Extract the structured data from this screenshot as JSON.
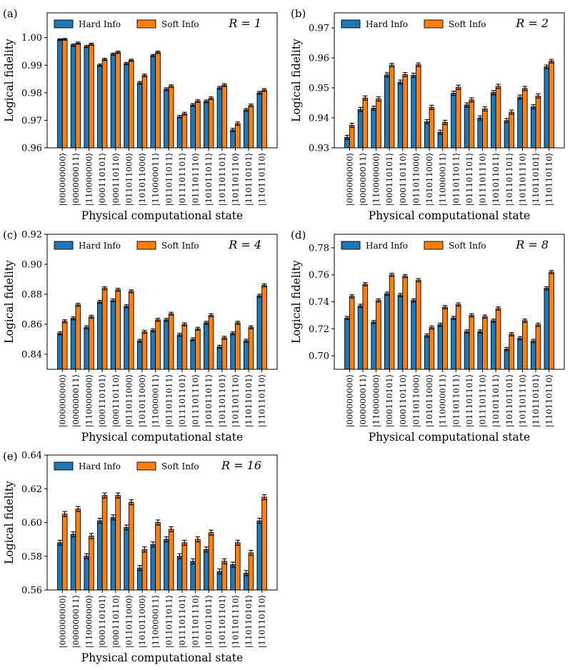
{
  "colors": {
    "hard": "#1f77b4",
    "soft": "#ff7f0e",
    "edge": "#000000"
  },
  "chart_data": [
    {
      "type": "bar",
      "panel": "(a)",
      "annotation": "R = 1",
      "xlabel": "Physical computational state",
      "ylabel": "Logical fidelity",
      "ylim": [
        0.96,
        1.009
      ],
      "yticks": [
        "0.96",
        "0.97",
        "0.98",
        "0.99",
        "1.00"
      ],
      "legend": [
        "Hard Info",
        "Soft Info"
      ],
      "categories": [
        "|000000000⟩",
        "|000000011⟩",
        "|110000000⟩",
        "|000110101⟩",
        "|000110110⟩",
        "|011011000⟩",
        "|101011000⟩",
        "|110000011⟩",
        "|011011011⟩",
        "|011101101⟩",
        "|011101110⟩",
        "|101011011⟩",
        "|101101101⟩",
        "|101101110⟩",
        "|110110101⟩",
        "|110110110⟩"
      ],
      "series": [
        {
          "name": "Hard Info",
          "values": [
            0.9993,
            0.9973,
            0.9968,
            0.99,
            0.994,
            0.9906,
            0.9836,
            0.9935,
            0.9813,
            0.9713,
            0.9756,
            0.9769,
            0.9818,
            0.9665,
            0.9738,
            0.98
          ],
          "errors": [
            0.0003,
            0.0004,
            0.0004,
            0.0004,
            0.0004,
            0.0004,
            0.0005,
            0.0004,
            0.0005,
            0.0005,
            0.0005,
            0.0005,
            0.0005,
            0.0006,
            0.0005,
            0.0005
          ]
        },
        {
          "name": "Soft Info",
          "values": [
            0.9994,
            0.998,
            0.9976,
            0.9921,
            0.9947,
            0.9918,
            0.9863,
            0.9947,
            0.9824,
            0.9724,
            0.977,
            0.978,
            0.9828,
            0.9688,
            0.9754,
            0.981
          ],
          "errors": [
            0.0003,
            0.0004,
            0.0004,
            0.0004,
            0.0004,
            0.0004,
            0.0005,
            0.0004,
            0.0005,
            0.0005,
            0.0005,
            0.0005,
            0.0005,
            0.0006,
            0.0005,
            0.0005
          ]
        }
      ]
    },
    {
      "type": "bar",
      "panel": "(b)",
      "annotation": "R = 2",
      "xlabel": "Physical computational state",
      "ylabel": "Logical fidelity",
      "ylim": [
        0.93,
        0.975
      ],
      "yticks": [
        "0.93",
        "0.94",
        "0.95",
        "0.96",
        "0.97"
      ],
      "legend": [
        "Hard Info",
        "Soft Info"
      ],
      "categories": [
        "|000000000⟩",
        "|000000011⟩",
        "|110000000⟩",
        "|000110101⟩",
        "|000110110⟩",
        "|011011000⟩",
        "|101011000⟩",
        "|110000011⟩",
        "|011011011⟩",
        "|011101101⟩",
        "|011101110⟩",
        "|101011011⟩",
        "|101101101⟩",
        "|101101110⟩",
        "|110110101⟩",
        "|110110110⟩"
      ],
      "series": [
        {
          "name": "Hard Info",
          "values": [
            0.9335,
            0.9428,
            0.9432,
            0.9543,
            0.9519,
            0.9542,
            0.9387,
            0.9352,
            0.9482,
            0.9443,
            0.94,
            0.9484,
            0.9391,
            0.9469,
            0.9437,
            0.957
          ],
          "errors": [
            0.0007,
            0.0007,
            0.0007,
            0.0007,
            0.0007,
            0.0007,
            0.0007,
            0.0007,
            0.0007,
            0.0007,
            0.0007,
            0.0007,
            0.0007,
            0.0007,
            0.0007,
            0.0006
          ]
        },
        {
          "name": "Soft Info",
          "values": [
            0.9375,
            0.9466,
            0.9463,
            0.9576,
            0.9544,
            0.9577,
            0.9435,
            0.9385,
            0.9502,
            0.946,
            0.943,
            0.9505,
            0.9419,
            0.9498,
            0.9473,
            0.9589
          ],
          "errors": [
            0.0007,
            0.0007,
            0.0007,
            0.0006,
            0.0007,
            0.0006,
            0.0007,
            0.0007,
            0.0007,
            0.0007,
            0.0007,
            0.0007,
            0.0007,
            0.0007,
            0.0007,
            0.0006
          ]
        }
      ]
    },
    {
      "type": "bar",
      "panel": "(c)",
      "annotation": "R = 4",
      "xlabel": "Physical computational state",
      "ylabel": "Logical fidelity",
      "ylim": [
        0.83,
        0.92
      ],
      "yticks": [
        "0.84",
        "0.86",
        "0.88",
        "0.90",
        "0.92"
      ],
      "legend": [
        "Hard Info",
        "Soft Info"
      ],
      "categories": [
        "|000000000⟩",
        "|000000011⟩",
        "|110000000⟩",
        "|000110101⟩",
        "|000110110⟩",
        "|011011000⟩",
        "|101011000⟩",
        "|110000011⟩",
        "|011011011⟩",
        "|011101101⟩",
        "|011101110⟩",
        "|101011011⟩",
        "|101101101⟩",
        "|101101110⟩",
        "|110110101⟩",
        "|110110110⟩"
      ],
      "series": [
        {
          "name": "Hard Info",
          "values": [
            0.854,
            0.864,
            0.858,
            0.875,
            0.876,
            0.872,
            0.849,
            0.856,
            0.863,
            0.853,
            0.85,
            0.861,
            0.845,
            0.854,
            0.849,
            0.879
          ],
          "errors": [
            0.001,
            0.001,
            0.001,
            0.001,
            0.001,
            0.001,
            0.001,
            0.001,
            0.001,
            0.001,
            0.001,
            0.001,
            0.001,
            0.001,
            0.001,
            0.001
          ]
        },
        {
          "name": "Soft Info",
          "values": [
            0.862,
            0.873,
            0.865,
            0.884,
            0.883,
            0.882,
            0.855,
            0.863,
            0.867,
            0.86,
            0.857,
            0.866,
            0.851,
            0.861,
            0.858,
            0.886
          ],
          "errors": [
            0.001,
            0.001,
            0.001,
            0.001,
            0.001,
            0.001,
            0.001,
            0.001,
            0.001,
            0.001,
            0.001,
            0.001,
            0.001,
            0.001,
            0.001,
            0.001
          ]
        }
      ]
    },
    {
      "type": "bar",
      "panel": "(d)",
      "annotation": "R = 8",
      "xlabel": "Physical computational state",
      "ylabel": "Logical fidelity",
      "ylim": [
        0.69,
        0.79
      ],
      "yticks": [
        "0.70",
        "0.72",
        "0.74",
        "0.76",
        "0.78"
      ],
      "legend": [
        "Hard Info",
        "Soft Info"
      ],
      "categories": [
        "|000000000⟩",
        "|000000011⟩",
        "|110000000⟩",
        "|000110101⟩",
        "|000110110⟩",
        "|011011000⟩",
        "|101011000⟩",
        "|110000011⟩",
        "|011011011⟩",
        "|011101101⟩",
        "|011101110⟩",
        "|101011011⟩",
        "|101101101⟩",
        "|101101110⟩",
        "|110110101⟩",
        "|110110110⟩"
      ],
      "series": [
        {
          "name": "Hard Info",
          "values": [
            0.728,
            0.737,
            0.725,
            0.746,
            0.745,
            0.741,
            0.715,
            0.723,
            0.728,
            0.718,
            0.718,
            0.726,
            0.705,
            0.713,
            0.711,
            0.75
          ],
          "errors": [
            0.0012,
            0.0012,
            0.0012,
            0.0012,
            0.0012,
            0.0012,
            0.0012,
            0.0012,
            0.0012,
            0.0012,
            0.0012,
            0.0012,
            0.0012,
            0.0012,
            0.0012,
            0.0012
          ]
        },
        {
          "name": "Soft Info",
          "values": [
            0.744,
            0.753,
            0.741,
            0.76,
            0.759,
            0.756,
            0.721,
            0.736,
            0.738,
            0.73,
            0.729,
            0.735,
            0.716,
            0.726,
            0.723,
            0.762
          ],
          "errors": [
            0.0012,
            0.0012,
            0.0012,
            0.0012,
            0.0012,
            0.0012,
            0.0012,
            0.0012,
            0.0012,
            0.0012,
            0.0012,
            0.0012,
            0.0012,
            0.0012,
            0.0012,
            0.0012
          ]
        }
      ]
    },
    {
      "type": "bar",
      "panel": "(e)",
      "annotation": "R = 16",
      "xlabel": "Physical computational state",
      "ylabel": "Logical fidelity",
      "ylim": [
        0.56,
        0.64
      ],
      "yticks": [
        "0.56",
        "0.58",
        "0.60",
        "0.62",
        "0.64"
      ],
      "legend": [
        "Hard Info",
        "Soft Info"
      ],
      "categories": [
        "|000000000⟩",
        "|000000011⟩",
        "|110000000⟩",
        "|000110101⟩",
        "|000110110⟩",
        "|011011000⟩",
        "|101011000⟩",
        "|110000011⟩",
        "|011011011⟩",
        "|011101101⟩",
        "|011101110⟩",
        "|101011011⟩",
        "|101101101⟩",
        "|101101110⟩",
        "|110110101⟩",
        "|110110110⟩"
      ],
      "series": [
        {
          "name": "Hard Info",
          "values": [
            0.588,
            0.593,
            0.58,
            0.601,
            0.603,
            0.597,
            0.573,
            0.587,
            0.59,
            0.58,
            0.577,
            0.584,
            0.571,
            0.575,
            0.57,
            0.601
          ],
          "errors": [
            0.0015,
            0.0015,
            0.0015,
            0.0015,
            0.0015,
            0.0015,
            0.0015,
            0.0015,
            0.0015,
            0.0015,
            0.0015,
            0.0015,
            0.0015,
            0.0015,
            0.0015,
            0.0015
          ]
        },
        {
          "name": "Soft Info",
          "values": [
            0.605,
            0.608,
            0.592,
            0.616,
            0.616,
            0.612,
            0.584,
            0.6,
            0.596,
            0.588,
            0.59,
            0.594,
            0.577,
            0.588,
            0.582,
            0.615
          ],
          "errors": [
            0.0015,
            0.0015,
            0.0015,
            0.0015,
            0.0015,
            0.0015,
            0.0015,
            0.0015,
            0.0015,
            0.0015,
            0.0015,
            0.0015,
            0.0015,
            0.0015,
            0.0015,
            0.0015
          ]
        }
      ]
    }
  ]
}
